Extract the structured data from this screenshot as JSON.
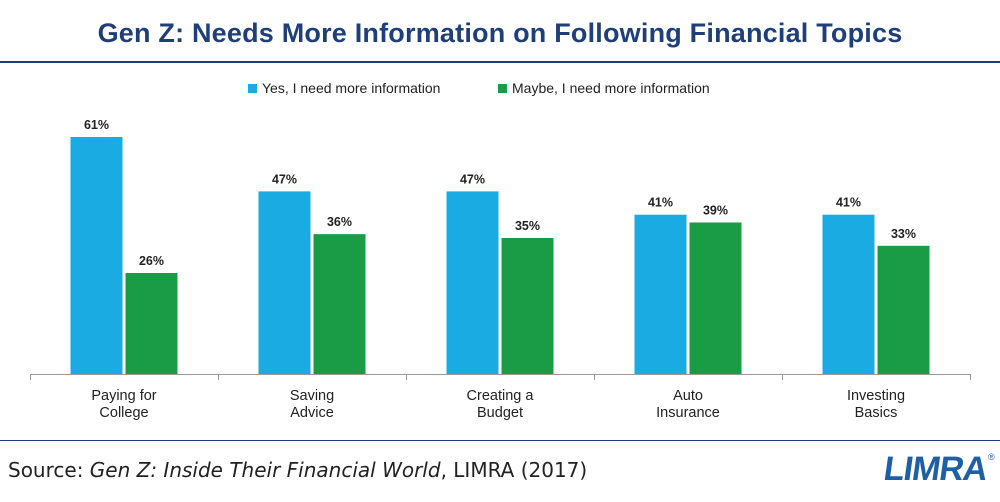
{
  "colors": {
    "yes": "#1aabe2",
    "maybe": "#1a9b46",
    "title": "#1f3f7a"
  },
  "chart_data": {
    "type": "bar",
    "title": "Gen Z: Needs More Information on Following Financial Topics",
    "categories": [
      [
        "Paying for",
        "College"
      ],
      [
        "Saving",
        "Advice"
      ],
      [
        "Creating a",
        "Budget"
      ],
      [
        "Auto",
        "Insurance"
      ],
      [
        "Investing",
        "Basics"
      ]
    ],
    "series": [
      {
        "name": "Yes, I need more information",
        "values": [
          61,
          47,
          47,
          41,
          41
        ]
      },
      {
        "name": "Maybe, I need more information",
        "values": [
          26,
          36,
          35,
          39,
          33
        ]
      }
    ],
    "value_suffix": "%",
    "ylim": [
      0,
      61
    ],
    "xlabel": "",
    "ylabel": "",
    "grid": false,
    "legend_position": "top"
  },
  "source": {
    "prefix": "Source: ",
    "title": "Gen Z: Inside Their Financial World",
    "suffix": ", LIMRA (2017)"
  },
  "logo": {
    "text": "LIMRA",
    "mark": "®"
  }
}
